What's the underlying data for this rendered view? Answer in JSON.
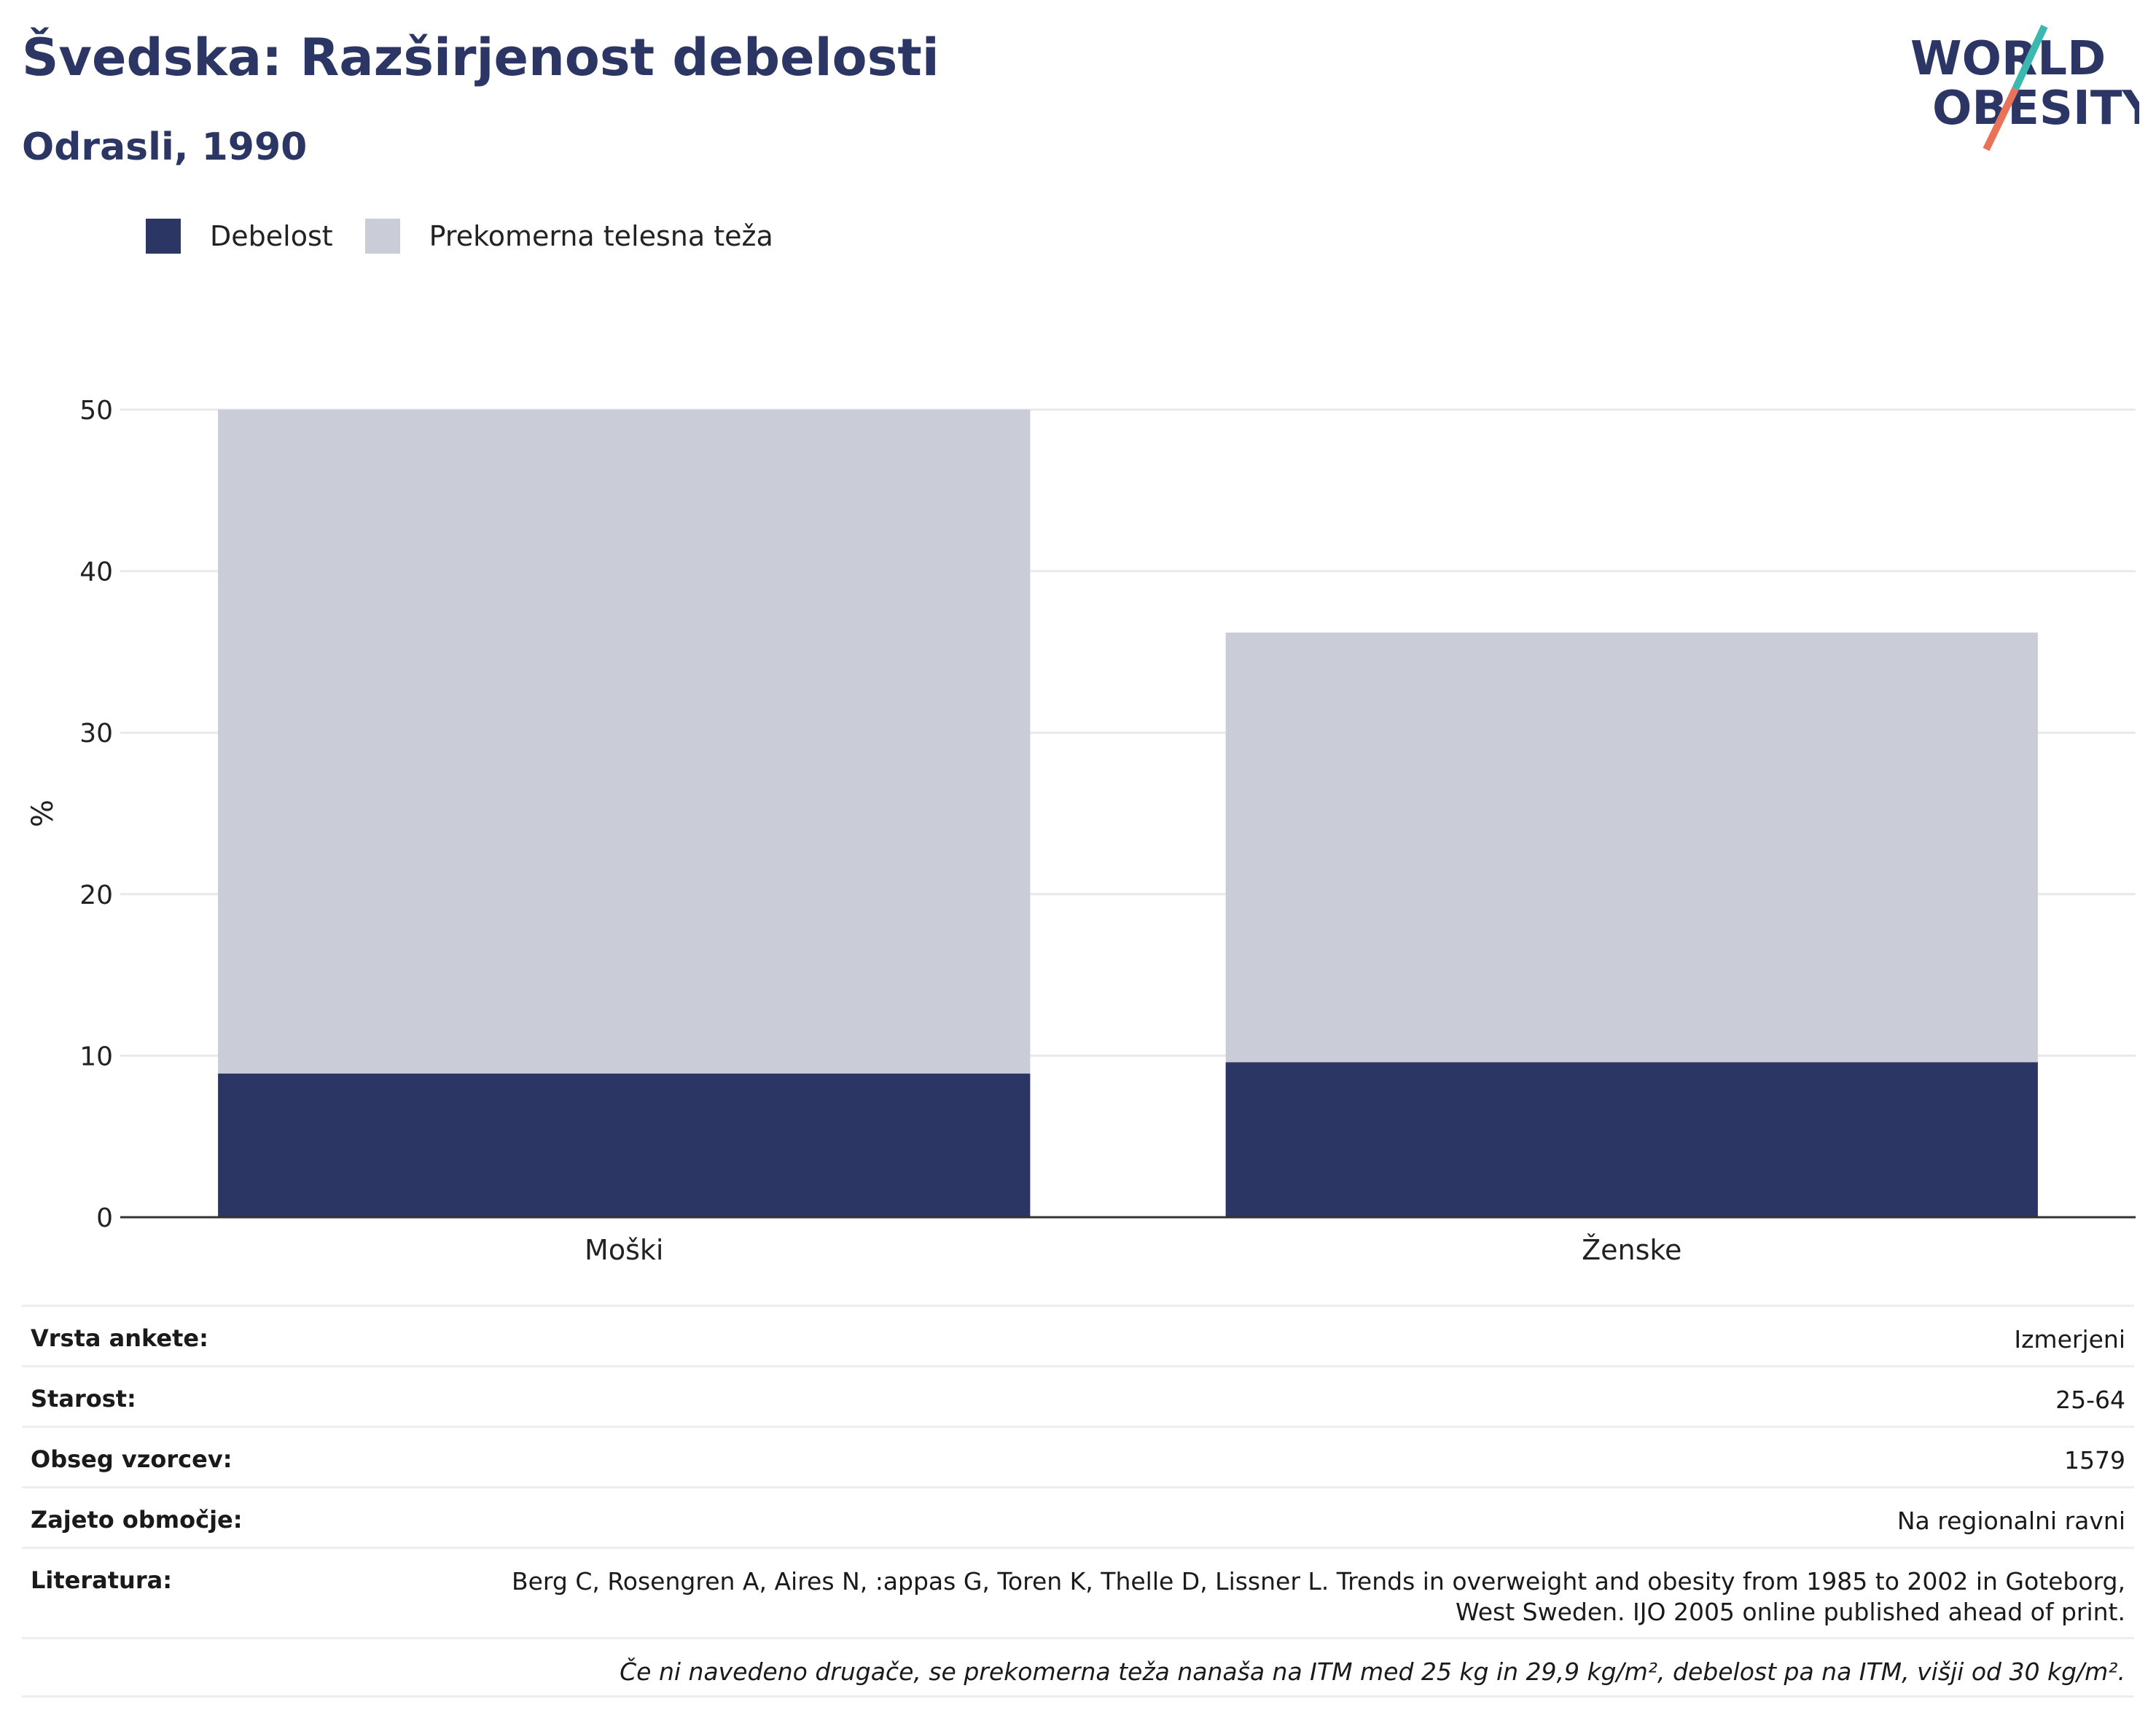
{
  "title": "Švedska: Razširjenost debelosti",
  "subtitle": "Odrasli, 1990",
  "logo": {
    "line1": "WORLD",
    "line2": "OBESITY",
    "color_navy": "#2b3664",
    "color_teal": "#3bb8b0",
    "color_coral": "#e8735a"
  },
  "colors": {
    "obesity": "#2b3664",
    "overweight": "#cacdd8",
    "grid": "#e8e9ee",
    "axis": "#333333"
  },
  "chart_data": {
    "type": "bar",
    "stacked": true,
    "categories": [
      "Moški",
      "Ženske"
    ],
    "series": [
      {
        "name": "Debelost",
        "values": [
          8.9,
          9.6
        ],
        "color": "#2b3664"
      },
      {
        "name": "Prekomerna telesna teža",
        "values": [
          41.1,
          26.6
        ],
        "color": "#cacdd8"
      }
    ],
    "ylabel": "%",
    "ylim": [
      0,
      50
    ],
    "yticks": [
      0,
      10,
      20,
      30,
      40,
      50
    ],
    "grid": true,
    "legend": "top-left"
  },
  "info": {
    "survey_label": "Vrsta ankete:",
    "survey_value": "Izmerjeni",
    "age_label": "Starost:",
    "age_value": "25-64",
    "sample_label": "Obseg vzorcev:",
    "sample_value": "1579",
    "area_label": "Zajeto območje:",
    "area_value": "Na regionalni ravni",
    "lit_label": "Literatura:",
    "lit_value": "Berg C, Rosengren A, Aires N, :appas G, Toren K, Thelle D, Lissner L. Trends in overweight and obesity from 1985 to 2002 in Goteborg, West Sweden. IJO 2005 online published ahead of print.",
    "note": "Če ni navedeno drugače, se prekomerna teža nanaša na ITM med 25 kg in 29,9 kg/m², debelost pa na ITM, višji od 30 kg/m²."
  }
}
